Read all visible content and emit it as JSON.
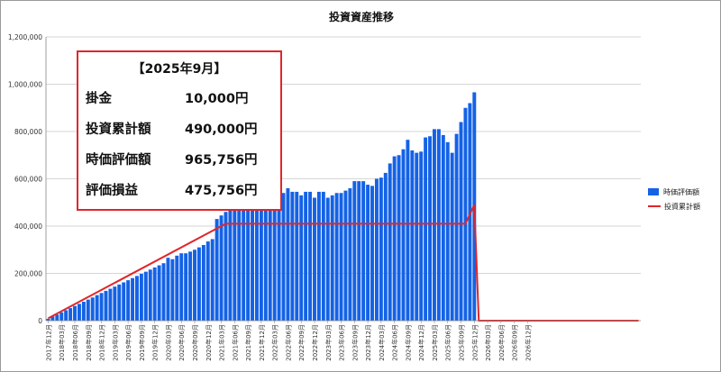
{
  "chart_data": {
    "type": "bar",
    "title": "投資資産推移",
    "ylim": [
      0,
      1200000
    ],
    "y_ticks": [
      "0",
      "200,000",
      "400,000",
      "600,000",
      "800,000",
      "1,000,000",
      "1,200,000"
    ],
    "grid": "horizontal",
    "legend_placement": "right",
    "x_tick_labels": [
      "2017年12月",
      "2018年03月",
      "2018年06月",
      "2018年09月",
      "2018年12月",
      "2019年03月",
      "2019年06月",
      "2019年09月",
      "2019年12月",
      "2020年03月",
      "2020年06月",
      "2020年09月",
      "2020年12月",
      "2021年03月",
      "2021年06月",
      "2021年09月",
      "2021年12月",
      "2022年03月",
      "2022年06月",
      "2022年09月",
      "2022年12月",
      "2023年03月",
      "2023年06月",
      "2023年09月",
      "2023年12月",
      "2024年03月",
      "2024年06月",
      "2024年09月",
      "2024年12月",
      "2025年03月",
      "2025年06月",
      "2025年09月",
      "2025年12月",
      "2026年03月",
      "2026年06月",
      "2026年09月",
      "2026年12月"
    ],
    "series": [
      {
        "name": "時価評価額",
        "kind": "bar",
        "color": "#1462e6",
        "values": [
          8000,
          18000,
          26000,
          35000,
          44000,
          53000,
          62000,
          71000,
          80000,
          89000,
          98000,
          108000,
          117000,
          126000,
          135000,
          144000,
          153000,
          162000,
          171000,
          180000,
          189000,
          198000,
          207000,
          216000,
          225000,
          234000,
          243000,
          266000,
          260000,
          275000,
          285000,
          285000,
          292000,
          300000,
          310000,
          320000,
          335000,
          345000,
          430000,
          445000,
          460000,
          470000,
          480000,
          490000,
          500000,
          520000,
          560000,
          555000,
          550000,
          562000,
          558000,
          568000,
          545000,
          540000,
          560000,
          545000,
          545000,
          530000,
          545000,
          545000,
          520000,
          545000,
          545000,
          520000,
          530000,
          540000,
          540000,
          550000,
          560000,
          590000,
          590000,
          590000,
          575000,
          570000,
          600000,
          605000,
          625000,
          665000,
          695000,
          700000,
          725000,
          765000,
          720000,
          710000,
          715000,
          775000,
          780000,
          810000,
          810000,
          785000,
          755000,
          710000,
          790000,
          840000,
          900000,
          920000,
          965756
        ]
      },
      {
        "name": "投資累計額",
        "kind": "line",
        "color": "#e0262a",
        "points": [
          [
            0,
            10000
          ],
          [
            40,
            410000
          ],
          [
            94,
            410000
          ],
          [
            96,
            490000
          ],
          [
            97,
            0
          ],
          [
            133,
            0
          ]
        ]
      }
    ],
    "x_count": 134
  },
  "info_box": {
    "heading": "【2025年9月】",
    "rows": [
      {
        "label": "掛金",
        "value": "10,000円"
      },
      {
        "label": "投資累計額",
        "value": "490,000円"
      },
      {
        "label": "時価評価額",
        "value": "965,756円"
      },
      {
        "label": "評価損益",
        "value": "475,756円"
      }
    ]
  },
  "legend": {
    "items": [
      {
        "label": "時価評価額",
        "type": "bar",
        "color": "#1462e6"
      },
      {
        "label": "投資累計額",
        "type": "line",
        "color": "#e0262a"
      }
    ]
  }
}
